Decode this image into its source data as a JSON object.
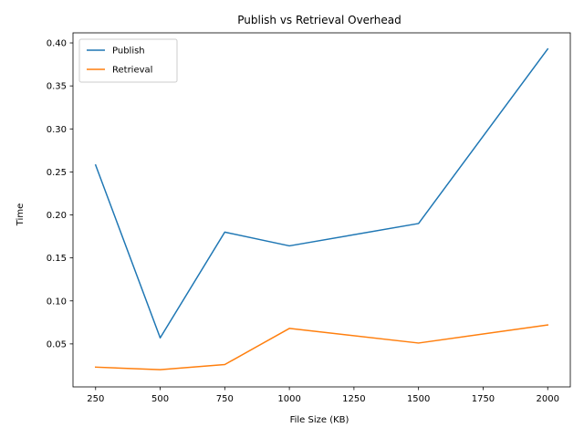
{
  "chart_data": {
    "type": "line",
    "title": "Publish vs Retrieval Overhead",
    "xlabel": "File Size (KB)",
    "ylabel": "Time",
    "x": [
      250,
      500,
      750,
      1000,
      1500,
      2000
    ],
    "series": [
      {
        "name": "Publish",
        "color": "#1f77b4",
        "values": [
          0.258,
          0.057,
          0.18,
          0.164,
          0.19,
          0.393
        ]
      },
      {
        "name": "Retrieval",
        "color": "#ff7f0e",
        "values": [
          0.023,
          0.02,
          0.026,
          0.068,
          0.051,
          0.072
        ]
      }
    ],
    "xlim": [
      162.5,
      2087.5
    ],
    "ylim": [
      0.0,
      0.4117
    ],
    "xticks": [
      250,
      500,
      750,
      1000,
      1250,
      1500,
      1750,
      2000
    ],
    "xtick_labels": [
      "250",
      "500",
      "750",
      "1000",
      "1250",
      "1500",
      "1750",
      "2000"
    ],
    "yticks": [
      0.05,
      0.1,
      0.15,
      0.2,
      0.25,
      0.3,
      0.35,
      0.4
    ],
    "ytick_labels": [
      "0.05",
      "0.10",
      "0.15",
      "0.20",
      "0.25",
      "0.30",
      "0.35",
      "0.40"
    ],
    "grid": false,
    "legend_position": "top-left"
  }
}
